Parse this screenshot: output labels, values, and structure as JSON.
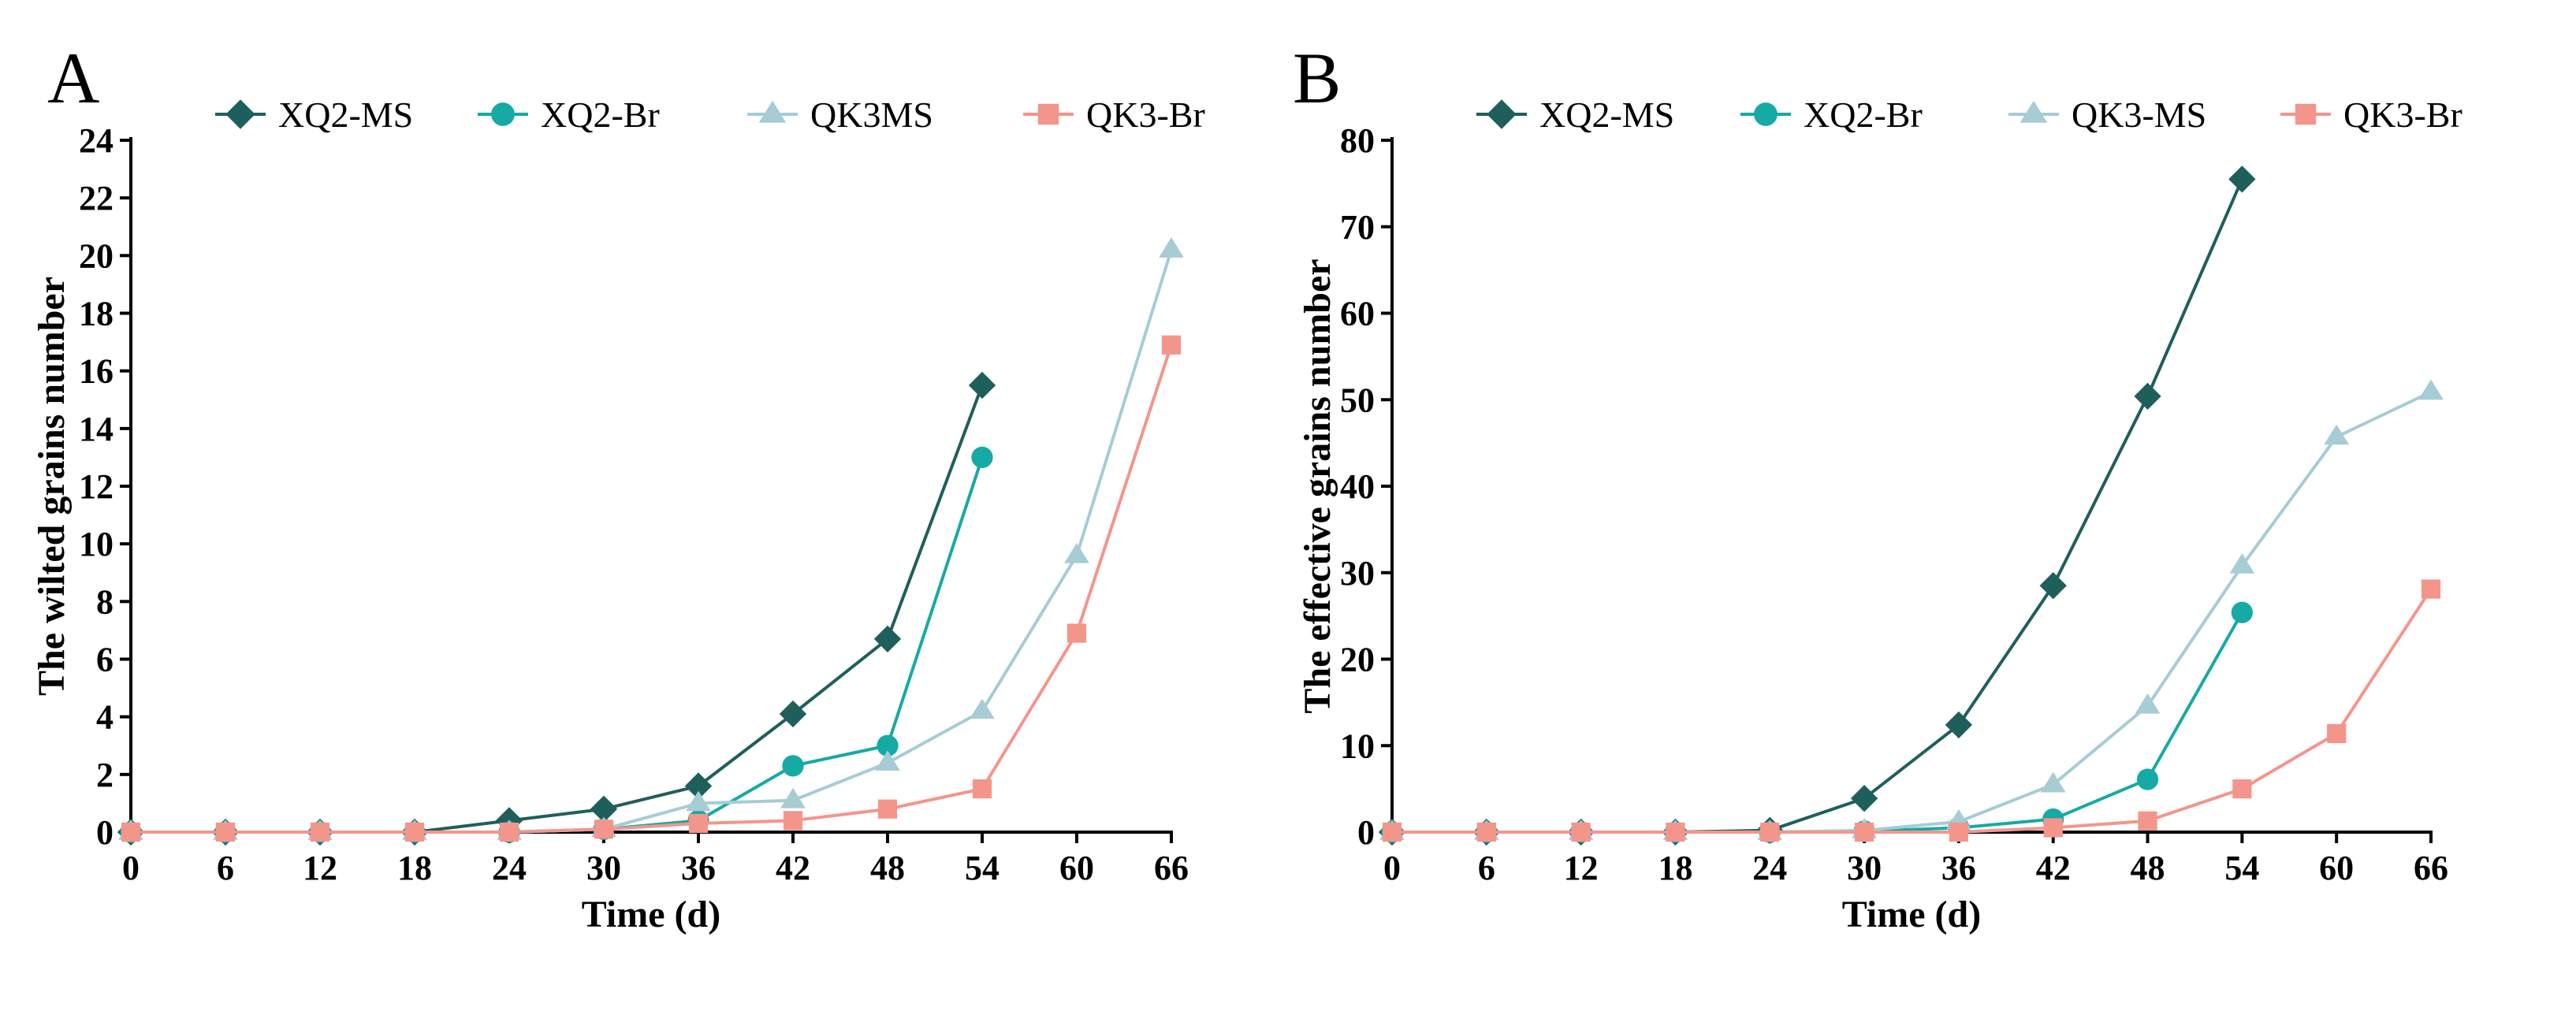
{
  "colors": {
    "XQ2-MS": "#1f5f5b",
    "XQ2-Br": "#16aaa4",
    "QK3-MS": "#a6ccd6",
    "QK3-Br": "#f4958b"
  },
  "chart_data": [
    {
      "panel": "A",
      "type": "line",
      "title": "",
      "xlabel": "Time (d)",
      "ylabel": "The wilted grains number",
      "xlim": [
        0,
        66
      ],
      "ylim": [
        0,
        24
      ],
      "x_ticks": [
        0,
        6,
        12,
        18,
        24,
        30,
        36,
        42,
        48,
        54,
        60,
        66
      ],
      "y_ticks": [
        0,
        2,
        4,
        6,
        8,
        10,
        12,
        14,
        16,
        18,
        20,
        22,
        24
      ],
      "grid": false,
      "legend_position": "top",
      "series": [
        {
          "name": "XQ2-MS",
          "marker": "diamond",
          "x": [
            0,
            6,
            12,
            18,
            24,
            30,
            36,
            42,
            48,
            54
          ],
          "y": [
            0,
            0,
            0,
            0,
            0.4,
            0.8,
            1.6,
            4.1,
            6.7,
            15.5
          ]
        },
        {
          "name": "XQ2-Br",
          "marker": "circle",
          "x": [
            0,
            6,
            12,
            18,
            24,
            30,
            36,
            42,
            48,
            54
          ],
          "y": [
            0,
            0,
            0,
            0,
            0,
            0.1,
            0.4,
            2.3,
            3.0,
            13.0
          ]
        },
        {
          "name": "QK3MS",
          "color_key": "QK3-MS",
          "marker": "triangle",
          "x": [
            0,
            6,
            12,
            18,
            24,
            30,
            36,
            42,
            48,
            54,
            60,
            66
          ],
          "y": [
            0,
            0,
            0,
            0,
            0,
            0.1,
            1.0,
            1.1,
            2.4,
            4.2,
            9.6,
            20.2
          ]
        },
        {
          "name": "QK3-Br",
          "marker": "square",
          "x": [
            0,
            6,
            12,
            18,
            24,
            30,
            36,
            42,
            48,
            54,
            60,
            66
          ],
          "y": [
            0,
            0,
            0,
            0,
            0,
            0.1,
            0.3,
            0.4,
            0.8,
            1.5,
            6.9,
            16.9
          ]
        }
      ]
    },
    {
      "panel": "B",
      "type": "line",
      "title": "",
      "xlabel": "Time (d)",
      "ylabel": "The effective grains number",
      "xlim": [
        0,
        66
      ],
      "ylim": [
        0,
        80
      ],
      "x_ticks": [
        0,
        6,
        12,
        18,
        24,
        30,
        36,
        42,
        48,
        54,
        60,
        66
      ],
      "y_ticks": [
        0,
        10,
        20,
        30,
        40,
        50,
        60,
        70,
        80
      ],
      "grid": false,
      "legend_position": "top",
      "series": [
        {
          "name": "XQ2-MS",
          "marker": "diamond",
          "x": [
            0,
            6,
            12,
            18,
            24,
            30,
            36,
            42,
            48,
            54
          ],
          "y": [
            0,
            0,
            0,
            0,
            0.2,
            3.9,
            12.4,
            28.5,
            50.4,
            75.5
          ]
        },
        {
          "name": "XQ2-Br",
          "marker": "circle",
          "x": [
            0,
            6,
            12,
            18,
            24,
            30,
            36,
            42,
            48,
            54
          ],
          "y": [
            0,
            0,
            0,
            0,
            0,
            0.1,
            0.5,
            1.5,
            6.1,
            25.4
          ]
        },
        {
          "name": "QK3-MS",
          "marker": "triangle",
          "x": [
            0,
            6,
            12,
            18,
            24,
            30,
            36,
            42,
            48,
            54,
            60,
            66
          ],
          "y": [
            0,
            0,
            0,
            0,
            0,
            0.2,
            1.2,
            5.5,
            14.6,
            30.8,
            45.7,
            50.9
          ]
        },
        {
          "name": "QK3-Br",
          "marker": "square",
          "x": [
            0,
            6,
            12,
            18,
            24,
            30,
            36,
            42,
            48,
            54,
            60,
            66
          ],
          "y": [
            0,
            0,
            0,
            0,
            0,
            0,
            0,
            0.5,
            1.3,
            5.0,
            11.4,
            28.1
          ]
        }
      ]
    }
  ]
}
